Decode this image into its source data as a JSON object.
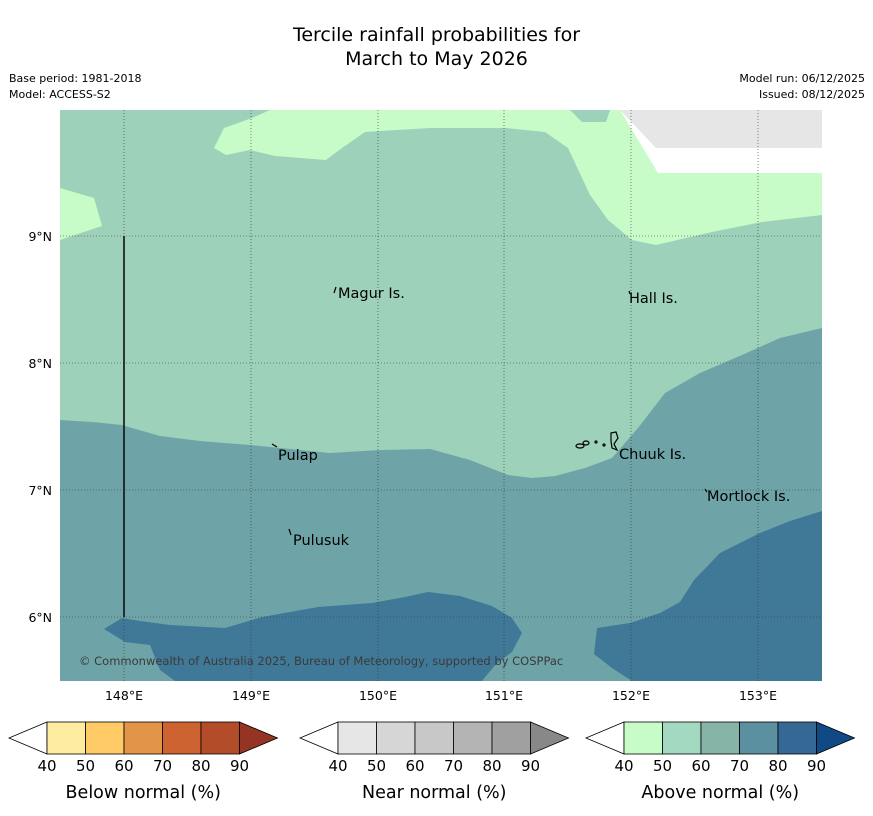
{
  "title": {
    "line1": "Tercile rainfall probabilities for",
    "line2": "March to May 2026"
  },
  "meta": {
    "base_period": "Base period: 1981-2018",
    "model": "Model: ACCESS-S2",
    "model_run": "Model run: 06/12/2025",
    "issued": "Issued: 08/12/2025"
  },
  "map": {
    "lon_ticks": [
      "148°E",
      "149°E",
      "150°E",
      "151°E",
      "152°E",
      "153°E"
    ],
    "lat_ticks": [
      "9°N",
      "8°N",
      "7°N",
      "6°N"
    ],
    "places": [
      "Magur Is.",
      "Hall Is.",
      "Pulap",
      "Chuuk Is.",
      "Mortlock Is.",
      "Pulusuk"
    ],
    "copyright": "© Commonwealth of Australia 2025, Bureau of Meteorology, supported by COSPPac",
    "colors": {
      "above_50": "#c7fcc8",
      "above_60": "#9dd1b9",
      "above_70": "#6ea4a8",
      "above_80": "#407997",
      "no_data": "#e6e6e6"
    }
  },
  "legends": [
    {
      "label": "Below normal (%)",
      "ticks": [
        "40",
        "50",
        "60",
        "70",
        "80",
        "90"
      ],
      "colors": [
        "#ffffff",
        "#feeda0",
        "#fecb67",
        "#e29548",
        "#cc6331",
        "#b24c29",
        "#963424"
      ]
    },
    {
      "label": "Near normal (%)",
      "ticks": [
        "40",
        "50",
        "60",
        "70",
        "80",
        "90"
      ],
      "colors": [
        "#ffffff",
        "#e6e6e6",
        "#d6d6d6",
        "#c8c8c8",
        "#b4b4b4",
        "#a0a0a0",
        "#888888"
      ]
    },
    {
      "label": "Above normal (%)",
      "ticks": [
        "40",
        "50",
        "60",
        "70",
        "80",
        "90"
      ],
      "colors": [
        "#ffffff",
        "#c7fcc8",
        "#a3d9c0",
        "#86b5a8",
        "#5a909f",
        "#356894",
        "#104a85"
      ]
    }
  ]
}
